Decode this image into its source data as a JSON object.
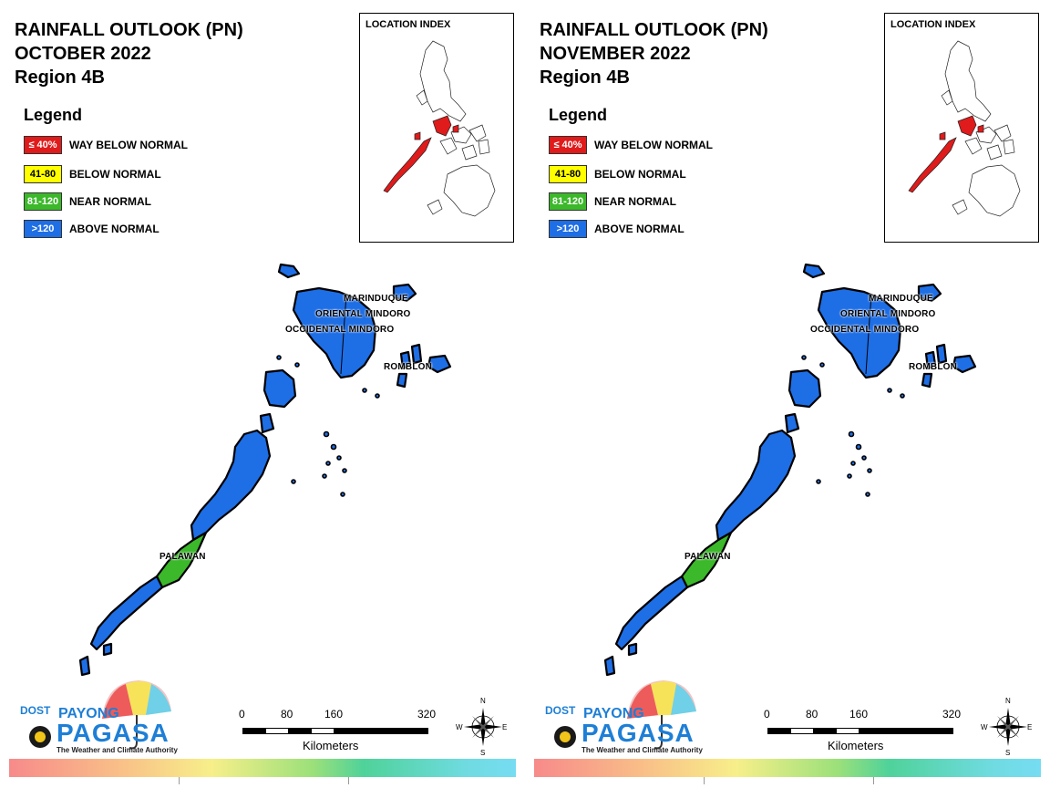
{
  "panels": [
    {
      "title_line1": "RAINFALL OUTLOOK (PN)",
      "title_line2": "OCTOBER 2022",
      "title_line3": "Region 4B",
      "legend_title": "Legend",
      "legend": [
        {
          "code": "≤ 40%",
          "label": "WAY BELOW NORMAL",
          "color": "#e01b1b",
          "text_color": "#ffffff"
        },
        {
          "code": "41-80",
          "label": "BELOW NORMAL",
          "color": "#ffff00",
          "text_color": "#000000"
        },
        {
          "code": "81-120",
          "label": "NEAR NORMAL",
          "color": "#3cb82b",
          "text_color": "#ffffff"
        },
        {
          "code": ">120",
          "label": "ABOVE NORMAL",
          "color": "#1e6ee6",
          "text_color": "#ffffff"
        }
      ],
      "inset_title": "LOCATION INDEX",
      "provinces": [
        {
          "name": "MARINDUQUE",
          "category": "ABOVE NORMAL"
        },
        {
          "name": "ORIENTAL MINDORO",
          "category": "ABOVE NORMAL"
        },
        {
          "name": "OCCIDENTAL MINDORO",
          "category": "ABOVE NORMAL"
        },
        {
          "name": "ROMBLON",
          "category": "ABOVE NORMAL"
        },
        {
          "name": "PALAWAN",
          "category": "ABOVE NORMAL / NEAR NORMAL"
        }
      ],
      "logo": {
        "dost": "DOST",
        "payong": "PAYONG",
        "pagasa": "PAGASA",
        "tagline": "The Weather and Climate Authority"
      },
      "scale": {
        "ticks": [
          "0",
          "80",
          "160",
          "320"
        ],
        "unit": "Kilometers"
      },
      "compass": {
        "n": "N",
        "s": "S",
        "e": "E",
        "w": "W"
      }
    },
    {
      "title_line1": "RAINFALL OUTLOOK (PN)",
      "title_line2": "NOVEMBER 2022",
      "title_line3": "Region 4B",
      "legend_title": "Legend",
      "legend": [
        {
          "code": "≤ 40%",
          "label": "WAY BELOW NORMAL",
          "color": "#e01b1b",
          "text_color": "#ffffff"
        },
        {
          "code": "41-80",
          "label": "BELOW NORMAL",
          "color": "#ffff00",
          "text_color": "#000000"
        },
        {
          "code": "81-120",
          "label": "NEAR NORMAL",
          "color": "#3cb82b",
          "text_color": "#ffffff"
        },
        {
          "code": ">120",
          "label": "ABOVE NORMAL",
          "color": "#1e6ee6",
          "text_color": "#ffffff"
        }
      ],
      "inset_title": "LOCATION INDEX",
      "provinces": [
        {
          "name": "MARINDUQUE",
          "category": "ABOVE NORMAL"
        },
        {
          "name": "ORIENTAL MINDORO",
          "category": "ABOVE NORMAL"
        },
        {
          "name": "OCCIDENTAL MINDORO",
          "category": "ABOVE NORMAL"
        },
        {
          "name": "ROMBLON",
          "category": "ABOVE NORMAL"
        },
        {
          "name": "PALAWAN",
          "category": "ABOVE NORMAL / NEAR NORMAL"
        }
      ],
      "logo": {
        "dost": "DOST",
        "payong": "PAYONG",
        "pagasa": "PAGASA",
        "tagline": "The Weather and Climate Authority"
      },
      "scale": {
        "ticks": [
          "0",
          "80",
          "160",
          "320"
        ],
        "unit": "Kilometers"
      },
      "compass": {
        "n": "N",
        "s": "S",
        "e": "E",
        "w": "W"
      }
    }
  ],
  "colors": {
    "above_normal": "#1e6ee6",
    "near_normal": "#3cb82b",
    "highlight_region": "#e01b1b"
  }
}
